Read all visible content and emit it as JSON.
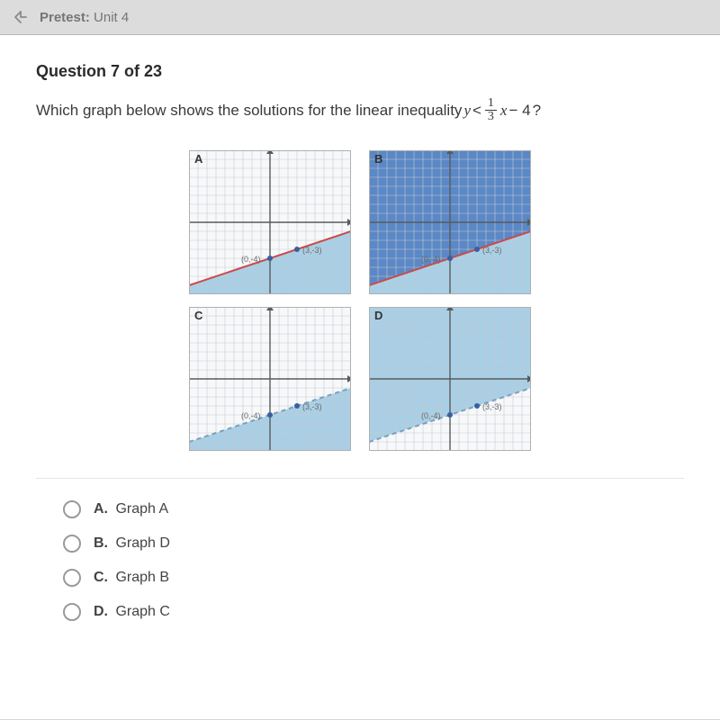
{
  "titlebar": {
    "label_bold": "Pretest:",
    "label_rest": "Unit 4"
  },
  "question": {
    "heading": "Question 7 of 23",
    "prompt_prefix": "Which graph below shows the solutions for the linear inequality ",
    "formula": {
      "lhs": "y",
      "op": "<",
      "frac_num": "1",
      "frac_den": "3",
      "rhs_var": "x",
      "rhs_const": "− 4",
      "trail": "?"
    }
  },
  "graphs": {
    "grid_color": "#c7c9ce",
    "axis_color": "#5a5a5a",
    "bg_unshaded": "#f7f8fa",
    "shade_light": "#a8cfe5",
    "shade_dark": "#5b88c6",
    "line_solid_color": "#c84a4a",
    "line_dashed_color": "#7aa0bf",
    "point_color": "#3a5fa0",
    "label_color": "#6a6a6a",
    "points": {
      "p1": "(0,-4)",
      "p2": "(3,-3)"
    },
    "letters": [
      "A",
      "B",
      "C",
      "D"
    ],
    "styles": {
      "A": {
        "region": "below",
        "line": "solid",
        "above_fill": "bg_unshaded",
        "below_fill": "shade_light"
      },
      "B": {
        "region": "above",
        "line": "solid",
        "above_fill": "shade_dark",
        "below_fill": "shade_light"
      },
      "C": {
        "region": "below",
        "line": "dashed",
        "above_fill": "bg_unshaded",
        "below_fill": "shade_light"
      },
      "D": {
        "region": "above",
        "line": "dashed",
        "above_fill": "shade_light",
        "below_fill": "bg_unshaded"
      }
    },
    "geometry": {
      "width": 180,
      "height": 160,
      "x_range": [
        -9,
        9
      ],
      "y_range": [
        -8,
        8
      ],
      "slope": 0.3333333,
      "intercept": -4
    }
  },
  "options": [
    {
      "letter": "A.",
      "text": "Graph A"
    },
    {
      "letter": "B.",
      "text": "Graph D"
    },
    {
      "letter": "C.",
      "text": "Graph B"
    },
    {
      "letter": "D.",
      "text": "Graph C"
    }
  ]
}
